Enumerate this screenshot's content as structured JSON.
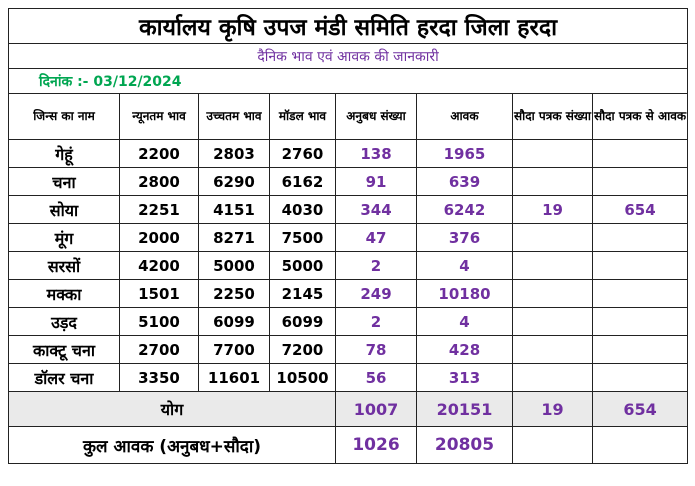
{
  "title": "कार्यालय कृषि उपज मंडी समिति हरदा जिला हरदा",
  "subtitle": "दैनिक भाव एवं आवक की जानकारी",
  "date_text": "दिनांक :- 03/12/2024",
  "headers": {
    "name": "जिन्स का नाम",
    "min": "न्यूनतम भाव",
    "max": "उच्चतम भाव",
    "model": "मॉडल भाव",
    "contract_count": "अनुबध संख्या",
    "arrival": "आवक",
    "deal_count": "सौदा पत्रक संख्या",
    "deal_arrival": "सौदा पत्रक से आवक"
  },
  "rows": [
    {
      "name": "गेहूं",
      "min": "2200",
      "max": "2803",
      "model": "2760",
      "contract_count": "138",
      "arrival": "1965",
      "deal_count": "",
      "deal_arrival": ""
    },
    {
      "name": "चना",
      "min": "2800",
      "max": "6290",
      "model": "6162",
      "contract_count": "91",
      "arrival": "639",
      "deal_count": "",
      "deal_arrival": ""
    },
    {
      "name": "सोया",
      "min": "2251",
      "max": "4151",
      "model": "4030",
      "contract_count": "344",
      "arrival": "6242",
      "deal_count": "19",
      "deal_arrival": "654"
    },
    {
      "name": "मूंग",
      "min": "2000",
      "max": "8271",
      "model": "7500",
      "contract_count": "47",
      "arrival": "376",
      "deal_count": "",
      "deal_arrival": ""
    },
    {
      "name": "सरसों",
      "min": "4200",
      "max": "5000",
      "model": "5000",
      "contract_count": "2",
      "arrival": "4",
      "deal_count": "",
      "deal_arrival": ""
    },
    {
      "name": "मक्का",
      "min": "1501",
      "max": "2250",
      "model": "2145",
      "contract_count": "249",
      "arrival": "10180",
      "deal_count": "",
      "deal_arrival": ""
    },
    {
      "name": "उड़द",
      "min": "5100",
      "max": "6099",
      "model": "6099",
      "contract_count": "2",
      "arrival": "4",
      "deal_count": "",
      "deal_arrival": ""
    },
    {
      "name": "काक्टू चना",
      "min": "2700",
      "max": "7700",
      "model": "7200",
      "contract_count": "78",
      "arrival": "428",
      "deal_count": "",
      "deal_arrival": ""
    },
    {
      "name": "डॉलर चना",
      "min": "3350",
      "max": "11601",
      "model": "10500",
      "contract_count": "56",
      "arrival": "313",
      "deal_count": "",
      "deal_arrival": ""
    }
  ],
  "total": {
    "label": "योग",
    "contract_count": "1007",
    "arrival": "20151",
    "deal_count": "19",
    "deal_arrival": "654"
  },
  "grand_total": {
    "label": "कुल आवक (अनुबध+सौदा)",
    "contract_count": "1026",
    "arrival": "20805"
  },
  "colors": {
    "accent_purple": "#7030a0",
    "date_green": "#00a651",
    "summary_bg": "#eaeaea"
  }
}
